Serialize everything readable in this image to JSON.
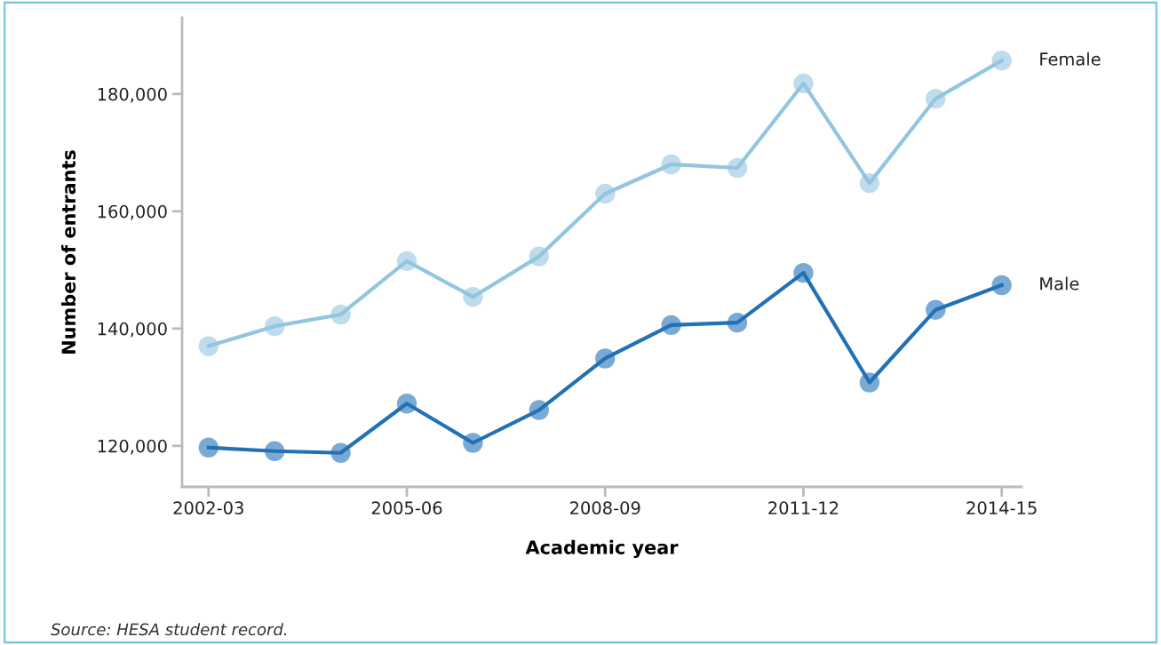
{
  "chart_data": {
    "type": "line",
    "xlabel": "Academic year",
    "ylabel": "Number of entrants",
    "categories": [
      "2002-03",
      null,
      null,
      "2005-06",
      null,
      null,
      "2008-09",
      null,
      null,
      "2011-12",
      null,
      null,
      "2014-15"
    ],
    "series": [
      {
        "name": "Female",
        "color": "#92c5de",
        "values": [
          137000,
          140400,
          142400,
          151500,
          145400,
          152300,
          163000,
          168000,
          167400,
          181800,
          164800,
          179200,
          185700
        ]
      },
      {
        "name": "Male",
        "color": "#2171b5",
        "values": [
          119700,
          119100,
          118800,
          127200,
          120500,
          126100,
          134900,
          140600,
          141000,
          149500,
          130800,
          143200,
          147400
        ]
      }
    ],
    "ylim": [
      113000,
      193000
    ],
    "yticks": [
      {
        "value": 120000,
        "label": "120,000"
      },
      {
        "value": 140000,
        "label": "140,000"
      },
      {
        "value": 160000,
        "label": "160,000"
      },
      {
        "value": 180000,
        "label": "180,000"
      }
    ],
    "grid": false,
    "legend": false,
    "marker": "circle",
    "line_style": "solid",
    "annotations": [
      "Source: HESA student record."
    ]
  }
}
